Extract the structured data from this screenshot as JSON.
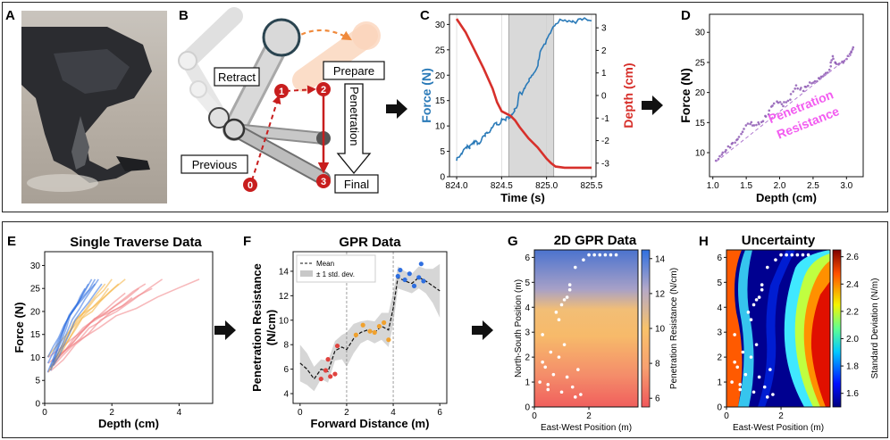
{
  "panel_labels": [
    "A",
    "B",
    "C",
    "D",
    "E",
    "F",
    "G",
    "H"
  ],
  "diagram_b": {
    "labels": {
      "retract": "Retract",
      "prepare": "Prepare",
      "penetration": "Penetration",
      "previous": "Previous",
      "final": "Final"
    },
    "steps": [
      "0",
      "1",
      "2",
      "3"
    ],
    "colors": {
      "step": "#c81e1e",
      "arrow_orange": "#f08a3c"
    }
  },
  "chart_data": [
    {
      "id": "C",
      "type": "line",
      "xlabel": "Time (s)",
      "ylabel": "Force (N)",
      "ylabel2": "Depth (cm)",
      "xlim": [
        823.92,
        825.55
      ],
      "ylim": [
        0,
        32
      ],
      "ylim2": [
        -3.6,
        3.6
      ],
      "xticks": [
        "824.0",
        "824.5",
        "825.0",
        "825.5"
      ],
      "xtick_values": [
        824.0,
        824.5,
        825.0,
        825.5
      ],
      "yticks": [
        "0",
        "5",
        "10",
        "15",
        "20",
        "25",
        "30"
      ],
      "yticks2": [
        "-3",
        "-2",
        "-1",
        "0",
        "1",
        "2",
        "3"
      ],
      "shaded_region": [
        824.58,
        825.08
      ],
      "vlines": [
        824.58,
        825.08
      ],
      "series": [
        {
          "axis": "left",
          "color": "#2a7ab8",
          "x": [
            824.0,
            824.05,
            824.1,
            824.15,
            824.2,
            824.25,
            824.3,
            824.35,
            824.4,
            824.45,
            824.5,
            824.55,
            824.6,
            824.65,
            824.7,
            824.75,
            824.8,
            824.85,
            824.9,
            824.95,
            825.0,
            825.05,
            825.1,
            825.2,
            825.3,
            825.4,
            825.5
          ],
          "y": [
            3.2,
            4.5,
            5.5,
            6.0,
            7.0,
            6.5,
            8.0,
            8.5,
            10.0,
            10.5,
            11.0,
            11.5,
            12.0,
            13.0,
            16.0,
            17.0,
            18.5,
            20.0,
            22.0,
            25.0,
            27.0,
            29.0,
            30.5,
            30.8,
            30.6,
            30.9,
            30.7
          ]
        },
        {
          "axis": "right",
          "color": "#d7302b",
          "x": [
            824.0,
            824.1,
            824.2,
            824.3,
            824.4,
            824.45,
            824.5,
            824.55,
            824.6,
            824.65,
            824.7,
            824.8,
            824.9,
            825.0,
            825.05,
            825.1,
            825.2,
            825.3,
            825.5
          ],
          "y": [
            3.4,
            2.8,
            2.0,
            1.2,
            0.3,
            -0.3,
            -0.7,
            -0.8,
            -0.9,
            -1.1,
            -1.4,
            -1.9,
            -2.3,
            -2.8,
            -3.0,
            -3.15,
            -3.2,
            -3.2,
            -3.2
          ]
        }
      ]
    },
    {
      "id": "D",
      "type": "scatter",
      "xlabel": "Depth (cm)",
      "ylabel": "Force (N)",
      "xlim": [
        0.95,
        3.25
      ],
      "ylim": [
        6,
        33
      ],
      "xticks": [
        "1.0",
        "1.5",
        "2.0",
        "2.5",
        "3.0"
      ],
      "xtick_values": [
        1.0,
        1.5,
        2.0,
        2.5,
        3.0
      ],
      "yticks": [
        "10",
        "15",
        "20",
        "25",
        "30"
      ],
      "ytick_values": [
        10,
        15,
        20,
        25,
        30
      ],
      "annotation": "Penetration Resistance",
      "color": "#8e5bb4",
      "x": [
        1.05,
        1.15,
        1.25,
        1.35,
        1.45,
        1.55,
        1.65,
        1.75,
        1.85,
        1.95,
        2.05,
        2.15,
        2.25,
        2.35,
        2.45,
        2.55,
        2.65,
        2.75,
        2.8,
        2.85,
        2.95,
        3.05,
        3.1
      ],
      "y": [
        8.5,
        10.0,
        11.0,
        12.0,
        13.5,
        15.0,
        14.5,
        15.5,
        17.0,
        18.5,
        18.0,
        19.0,
        21.0,
        20.5,
        21.5,
        22.0,
        22.5,
        23.5,
        26.0,
        24.5,
        25.0,
        26.5,
        27.5
      ]
    },
    {
      "id": "E",
      "type": "line",
      "title": "Single Traverse Data",
      "xlabel": "Depth (cm)",
      "ylabel": "Force (N)",
      "xlim": [
        0,
        5
      ],
      "ylim": [
        0,
        33
      ],
      "xticks": [
        "0",
        "2",
        "4"
      ],
      "xtick_values": [
        0,
        2,
        4
      ],
      "yticks": [
        "0",
        "5",
        "10",
        "15",
        "20",
        "25",
        "30"
      ],
      "ytick_values": [
        0,
        5,
        10,
        15,
        20,
        25,
        30
      ],
      "series": [
        {
          "color": "#2f6fe0",
          "endpoints": [
            [
              1.2,
              25
            ],
            [
              1.3,
              26
            ],
            [
              1.4,
              27
            ],
            [
              1.5,
              26
            ],
            [
              1.6,
              27
            ],
            [
              1.7,
              26
            ],
            [
              1.5,
              27
            ]
          ]
        },
        {
          "color": "#f4b03c",
          "endpoints": [
            [
              1.8,
              26
            ],
            [
              2.0,
              27
            ],
            [
              2.2,
              26
            ],
            [
              2.4,
              27
            ],
            [
              1.9,
              25
            ]
          ]
        },
        {
          "color": "#f07f83",
          "endpoints": [
            [
              2.4,
              24
            ],
            [
              2.8,
              25
            ],
            [
              3.0,
              26
            ],
            [
              3.2,
              25
            ],
            [
              3.5,
              27
            ],
            [
              2.6,
              23
            ],
            [
              4.6,
              27
            ]
          ]
        }
      ]
    },
    {
      "id": "F",
      "type": "line",
      "title": "GPR Data",
      "xlabel": "Forward Distance (m)",
      "ylabel": "Penetration Resistance (N/cm)",
      "xlim": [
        -0.3,
        6.3
      ],
      "ylim": [
        3.2,
        15.6
      ],
      "xticks": [
        "0",
        "2",
        "4",
        "6"
      ],
      "xtick_values": [
        0,
        2,
        4,
        6
      ],
      "yticks": [
        "4",
        "6",
        "8",
        "10",
        "12",
        "14"
      ],
      "ytick_values": [
        4,
        6,
        8,
        10,
        12,
        14
      ],
      "vlines": [
        2,
        4
      ],
      "legend": [
        "Mean",
        "± 1 std. dev."
      ],
      "mean": {
        "x": [
          0,
          0.3,
          0.6,
          0.9,
          1.2,
          1.5,
          1.8,
          2.0,
          2.3,
          2.6,
          2.9,
          3.2,
          3.5,
          3.8,
          4.0,
          4.2,
          4.5,
          4.8,
          5.1,
          5.4,
          5.7,
          6.0
        ],
        "y": [
          6.5,
          6.0,
          5.2,
          6.0,
          5.8,
          7.5,
          7.8,
          7.6,
          8.5,
          9.0,
          9.2,
          9.0,
          9.5,
          9.2,
          11.0,
          13.5,
          13.2,
          13.0,
          13.5,
          13.2,
          12.8,
          12.4
        ]
      },
      "std": [
        1.5,
        1.3,
        1.0,
        0.8,
        0.9,
        0.8,
        1.0,
        1.4,
        1.2,
        0.9,
        0.8,
        0.9,
        1.1,
        1.4,
        1.3,
        0.9,
        0.8,
        0.8,
        0.9,
        1.0,
        1.4,
        2.2
      ],
      "points": [
        {
          "color": "#e0433f",
          "x": [
            0.9,
            1.1,
            1.2,
            1.3,
            1.5,
            1.6
          ],
          "y": [
            5.2,
            5.9,
            6.8,
            5.4,
            5.6,
            7.9
          ]
        },
        {
          "color": "#f0a12e",
          "x": [
            2.4,
            2.7,
            3.0,
            3.2,
            3.4,
            3.6,
            3.8
          ],
          "y": [
            8.8,
            9.6,
            9.1,
            9.0,
            9.5,
            9.8,
            8.4
          ]
        },
        {
          "color": "#2f6fe0",
          "x": [
            4.2,
            4.3,
            4.5,
            4.7,
            4.9,
            5.1,
            5.2,
            5.3
          ],
          "y": [
            13.6,
            14.1,
            13.3,
            13.8,
            12.8,
            13.5,
            14.6,
            13.2
          ]
        }
      ]
    },
    {
      "id": "G",
      "type": "heatmap",
      "title": "2D GPR Data",
      "xlabel": "East-West Position (m)",
      "ylabel": "North-South Position (m)",
      "xlim": [
        0,
        3.8
      ],
      "ylim": [
        0,
        6.3
      ],
      "xticks": [
        "0",
        "2"
      ],
      "xtick_values": [
        0,
        2
      ],
      "yticks": [
        "0",
        "1",
        "2",
        "3",
        "4",
        "5",
        "6"
      ],
      "ytick_values": [
        0,
        1,
        2,
        3,
        4,
        5,
        6
      ],
      "colorbar": {
        "label": "Penetration Resistance (N/cm)",
        "ticks": [
          "6",
          "8",
          "10",
          "12",
          "14"
        ],
        "tick_values": [
          6,
          8,
          10,
          12,
          14
        ],
        "range": [
          5.5,
          14.5
        ]
      },
      "points": {
        "x": [
          0.2,
          0.4,
          0.5,
          0.7,
          0.3,
          0.6,
          0.9,
          0.8,
          1.0,
          1.2,
          1.1,
          1.3,
          0.9,
          1.0,
          1.2,
          1.4,
          1.5,
          1.6,
          1.7,
          1.5,
          1.8,
          2.0,
          2.2,
          2.4,
          2.6,
          2.8,
          3.0,
          0.3,
          0.5,
          1.1,
          1.3
        ],
        "y": [
          1.0,
          1.6,
          0.9,
          1.3,
          2.9,
          2.2,
          2.0,
          3.8,
          4.1,
          4.4,
          4.3,
          4.7,
          3.5,
          0.6,
          1.2,
          0.8,
          0.4,
          1.5,
          0.5,
          5.6,
          5.9,
          6.1,
          6.1,
          6.1,
          6.1,
          6.1,
          6.1,
          1.8,
          0.7,
          2.5,
          4.9
        ]
      }
    },
    {
      "id": "H",
      "type": "heatmap",
      "title": "Uncertainty",
      "xlabel": "East-West Position (m)",
      "ylabel": "",
      "xlim": [
        0,
        3.8
      ],
      "ylim": [
        0,
        6.3
      ],
      "xticks": [
        "0",
        "2"
      ],
      "xtick_values": [
        0,
        2
      ],
      "yticks": [
        "0",
        "1",
        "2",
        "3",
        "4",
        "5",
        "6"
      ],
      "ytick_values": [
        0,
        1,
        2,
        3,
        4,
        5,
        6
      ],
      "colorbar": {
        "label": "Standard Deviation (N/m)",
        "ticks": [
          "1.6",
          "1.8",
          "2.0",
          "2.2",
          "2.4",
          "2.6"
        ],
        "tick_values": [
          1.6,
          1.8,
          2.0,
          2.2,
          2.4,
          2.6
        ],
        "range": [
          1.5,
          2.65
        ]
      }
    }
  ]
}
